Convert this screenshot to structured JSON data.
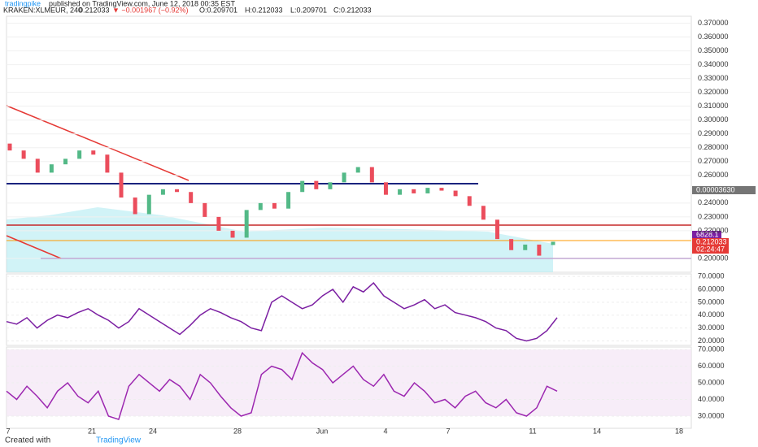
{
  "chart_data": {
    "type": "candlestick",
    "header": {
      "author": "tradingpike",
      "published": "published on TradingView.com, June 12, 2018 00:35 EST",
      "symbol": "KRAKEN:XLMEUR, 240",
      "price": "0.212033",
      "change": "▼ −0.001967 (−0.92%)",
      "open": "O:0.209701",
      "high": "H:0.212033",
      "low": "L:0.209701",
      "close": "C:0.212033"
    },
    "ylim": [
      0.19,
      0.375
    ],
    "yticks": [
      {
        "value": 0.2,
        "label": "0.200000"
      },
      {
        "value": 0.22,
        "label": "0.220000"
      },
      {
        "value": 0.23,
        "label": "0.230000"
      },
      {
        "value": 0.24,
        "label": "0.240000"
      },
      {
        "value": 0.26,
        "label": "0.260000"
      },
      {
        "value": 0.27,
        "label": "0.270000"
      },
      {
        "value": 0.28,
        "label": "0.280000"
      },
      {
        "value": 0.29,
        "label": "0.290000"
      },
      {
        "value": 0.3,
        "label": "0.300000"
      },
      {
        "value": 0.31,
        "label": "0.310000"
      },
      {
        "value": 0.32,
        "label": "0.320000"
      },
      {
        "value": 0.33,
        "label": "0.330000"
      },
      {
        "value": 0.34,
        "label": "0.340000"
      },
      {
        "value": 0.35,
        "label": "0.350000"
      },
      {
        "value": 0.36,
        "label": "0.360000"
      },
      {
        "value": 0.37,
        "label": "0.370000"
      }
    ],
    "open": [
      0.283,
      0.278,
      0.272,
      0.262,
      0.268,
      0.272,
      0.278,
      0.275,
      0.262,
      0.244,
      0.232,
      0.246,
      0.25,
      0.248,
      0.24,
      0.23,
      0.22,
      0.215,
      0.235,
      0.24,
      0.236,
      0.248,
      0.256,
      0.25,
      0.255,
      0.262,
      0.266,
      0.255,
      0.246,
      0.25,
      0.247,
      0.251,
      0.249,
      0.245,
      0.238,
      0.228,
      0.214,
      0.206,
      0.21,
      0.209701
    ],
    "close": [
      0.278,
      0.272,
      0.262,
      0.268,
      0.272,
      0.278,
      0.275,
      0.262,
      0.244,
      0.232,
      0.246,
      0.25,
      0.248,
      0.24,
      0.23,
      0.22,
      0.215,
      0.235,
      0.24,
      0.236,
      0.248,
      0.256,
      0.25,
      0.255,
      0.262,
      0.266,
      0.255,
      0.246,
      0.25,
      0.247,
      0.251,
      0.249,
      0.245,
      0.238,
      0.228,
      0.214,
      0.206,
      0.21,
      0.202,
      0.212033
    ],
    "price_labels": [
      "0.00003630",
      "6828.1",
      "0.212033",
      "02:24:47"
    ],
    "x_labels": [
      "7",
      "21",
      "24",
      "28",
      "Jun",
      "4",
      "7",
      "11",
      "14",
      "18"
    ],
    "panels": [
      {
        "ylim": [
          16.5,
          72
        ],
        "yticks": [
          {
            "value": 70,
            "label": "70.0000"
          },
          {
            "value": 60,
            "label": "60.0000"
          },
          {
            "value": 50,
            "label": "50.0000"
          },
          {
            "value": 40,
            "label": "40.0000"
          },
          {
            "value": 30,
            "label": "30.0000"
          },
          {
            "value": 20,
            "label": "20.0000"
          }
        ],
        "color": "#7b1fa2",
        "values": [
          35,
          33,
          38,
          30,
          36,
          40,
          38,
          42,
          45,
          40,
          36,
          30,
          35,
          45,
          40,
          35,
          30,
          25,
          32,
          40,
          45,
          42,
          38,
          35,
          30,
          28,
          50,
          55,
          50,
          45,
          48,
          55,
          60,
          50,
          62,
          58,
          65,
          55,
          50,
          45,
          48,
          52,
          45,
          48,
          42,
          40,
          38,
          35,
          30,
          28,
          22,
          20,
          22,
          28,
          38
        ]
      },
      {
        "ylim": [
          22.7,
          71.5
        ],
        "yticks": [
          {
            "value": 70,
            "label": "70.0000"
          },
          {
            "value": 60,
            "label": "60.0000"
          },
          {
            "value": 50,
            "label": "50.0000"
          },
          {
            "value": 40,
            "label": "40.0000"
          },
          {
            "value": 30,
            "label": "30.0000"
          }
        ],
        "color": "#9c27b0",
        "values": [
          45,
          40,
          48,
          42,
          35,
          45,
          50,
          42,
          38,
          45,
          30,
          28,
          48,
          55,
          50,
          45,
          52,
          48,
          40,
          55,
          50,
          42,
          35,
          30,
          32,
          55,
          60,
          58,
          52,
          68,
          62,
          58,
          50,
          55,
          60,
          52,
          48,
          55,
          45,
          42,
          50,
          45,
          38,
          40,
          35,
          42,
          45,
          38,
          35,
          40,
          32,
          30,
          35,
          48,
          45
        ]
      }
    ],
    "footer": {
      "created": "Created with",
      "brand": "TradingView"
    }
  }
}
